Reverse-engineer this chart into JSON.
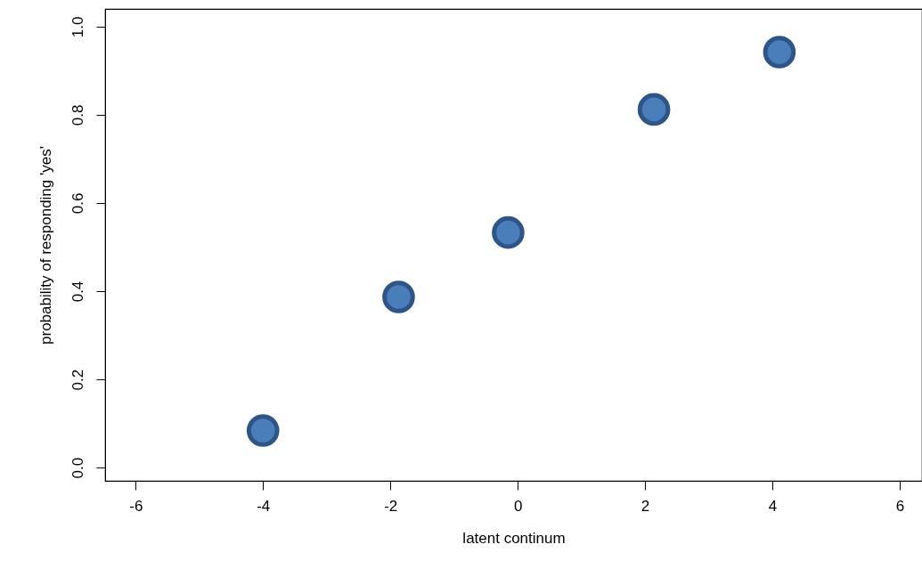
{
  "chart_data": {
    "type": "scatter",
    "xlabel": "latent continum",
    "ylabel": "probability of responding 'yes'",
    "x": [
      -4.0,
      -1.87,
      -0.15,
      2.14,
      4.11
    ],
    "series": [
      {
        "color": "#4a7ebb",
        "values": [
          0.084,
          0.387,
          0.533,
          0.812,
          0.942
        ]
      }
    ],
    "xlim": [
      -6.48,
      6.35
    ],
    "xticks": [
      -6,
      -4,
      -2,
      0,
      2,
      4,
      6
    ],
    "ylim": [
      -0.03,
      1.04
    ],
    "yticks": [
      {
        "value": 0,
        "label": "0.0"
      },
      0.2,
      0.4,
      0.6,
      0.8,
      {
        "value": 1,
        "label": "1.0"
      }
    ],
    "marker": "circle",
    "grid": false
  }
}
